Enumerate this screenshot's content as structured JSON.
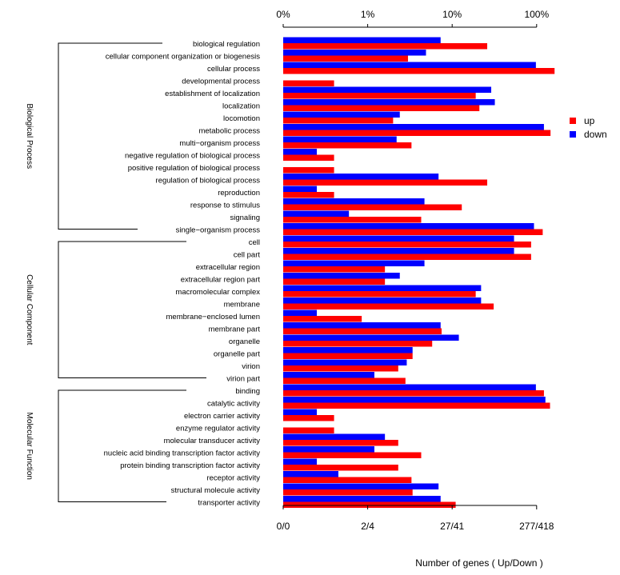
{
  "chart_data": {
    "type": "bar",
    "orientation": "horizontal",
    "scale": "log",
    "top_ticks": [
      "0%",
      "1%",
      "10%",
      "100%"
    ],
    "bottom_ticks": [
      "0/0",
      "2/4",
      "27/41",
      "277/418"
    ],
    "xlabel": "Number of genes ( Up/Down )",
    "legend": {
      "position": "top-right"
    },
    "colors": {
      "up": "#ff0000",
      "down": "#0000ff"
    },
    "groups": [
      {
        "name": "Biological Process",
        "first": 0,
        "last": 15
      },
      {
        "name": "Cellular Component",
        "first": 16,
        "last": 27
      },
      {
        "name": "Molecular Function",
        "first": 28,
        "last": 37
      }
    ],
    "categories": [
      "biological regulation",
      "cellular component organization or biogenesis",
      "cellular process",
      "developmental process",
      "establishment of localization",
      "localization",
      "locomotion",
      "metabolic process",
      "multi−organism process",
      "negative regulation of biological process",
      "positive regulation of biological process",
      "regulation of biological process",
      "reproduction",
      "response to stimulus",
      "signaling",
      "single−organism process",
      "cell",
      "cell part",
      "extracellular region",
      "extracellular region part",
      "macromolecular complex",
      "membrane",
      "membrane−enclosed lumen",
      "membrane part",
      "organelle",
      "organelle part",
      "virion",
      "virion part",
      "binding",
      "catalytic activity",
      "electron carrier activity",
      "enzyme regulator activity",
      "molecular transducer activity",
      "nucleic acid binding transcription factor activity",
      "protein binding transcription factor activity",
      "receptor activity",
      "structural molecule activity",
      "transporter activity"
    ],
    "series": [
      {
        "name": "up",
        "values": [
          26,
          3,
          163,
          0.4,
          19,
          21,
          2,
          146,
          3.3,
          0.4,
          0.4,
          26,
          0.4,
          13,
          4.3,
          118,
          86,
          86,
          1.6,
          1.6,
          19,
          31,
          0.85,
          7.5,
          5.8,
          3.4,
          2.3,
          2.8,
          122,
          144,
          0.4,
          0.4,
          2.3,
          4.3,
          2.3,
          3.3,
          3.4,
          11
        ]
      },
      {
        "name": "down",
        "values": [
          7.3,
          4.9,
          98,
          0,
          29,
          32,
          2.4,
          122,
          2.2,
          0.25,
          0,
          6.9,
          0.25,
          4.7,
          0.6,
          93,
          54,
          54,
          4.7,
          2.4,
          22,
          22,
          0.25,
          7.3,
          12,
          3.4,
          2.9,
          1.2,
          98,
          127,
          0.25,
          0,
          1.6,
          1.2,
          0.25,
          0.45,
          6.9,
          7.3
        ]
      }
    ]
  }
}
